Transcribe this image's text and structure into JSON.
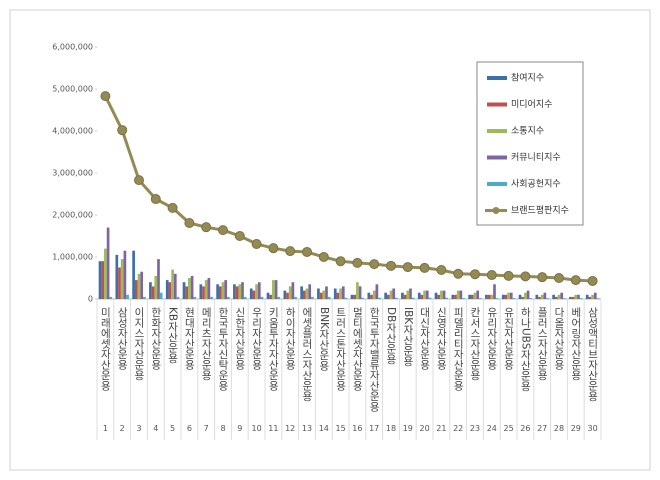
{
  "chart_data": {
    "type": "bar-line",
    "categories": [
      "미래에셋자산운용",
      "삼성자산운용",
      "이지스자산운용",
      "한화자산운용",
      "KB자산운용",
      "현대자산운용",
      "메리츠자산운용",
      "한국투자신탁운용",
      "신한자산운용",
      "우리자산운용",
      "키움투자자산운용",
      "하이자산운용",
      "에셋플러스자산운용",
      "BNK자산운용",
      "트러스톤자산운용",
      "멀티에셋자산운용",
      "한국투자밸류자산운용",
      "DB자산운용",
      "IBK자산운용",
      "대신자산운용",
      "신영자산운용",
      "피델리티자산운용",
      "칸서스자산운용",
      "유리자산운용",
      "유진자산운용",
      "하나UBS자산운용",
      "플러스자산운용",
      "다올자산운용",
      "베어링자산운용",
      "삼성액티브자산운용"
    ],
    "ranks": [
      "1",
      "2",
      "3",
      "4",
      "5",
      "6",
      "7",
      "8",
      "9",
      "10",
      "11",
      "12",
      "13",
      "14",
      "15",
      "16",
      "17",
      "18",
      "19",
      "20",
      "21",
      "22",
      "23",
      "24",
      "25",
      "26",
      "27",
      "28",
      "29",
      "30"
    ],
    "series": [
      {
        "name": "참여지수",
        "color": "#3d6fa8",
        "kind": "bar",
        "values": [
          900000,
          1050000,
          1150000,
          400000,
          450000,
          400000,
          350000,
          350000,
          350000,
          250000,
          150000,
          200000,
          300000,
          250000,
          250000,
          100000,
          150000,
          150000,
          150000,
          150000,
          150000,
          100000,
          100000,
          100000,
          100000,
          100000,
          100000,
          100000,
          50000,
          100000
        ]
      },
      {
        "name": "미디어지수",
        "color": "#c0504d",
        "kind": "bar",
        "values": [
          900000,
          750000,
          450000,
          300000,
          400000,
          300000,
          300000,
          300000,
          300000,
          200000,
          100000,
          150000,
          200000,
          150000,
          150000,
          100000,
          100000,
          100000,
          100000,
          100000,
          100000,
          100000,
          100000,
          100000,
          100000,
          50000,
          50000,
          50000,
          50000,
          50000
        ]
      },
      {
        "name": "소통지수",
        "color": "#9bbb59",
        "kind": "bar",
        "values": [
          1200000,
          950000,
          600000,
          550000,
          700000,
          500000,
          450000,
          400000,
          350000,
          350000,
          450000,
          300000,
          250000,
          200000,
          250000,
          400000,
          200000,
          200000,
          200000,
          200000,
          200000,
          200000,
          150000,
          100000,
          150000,
          150000,
          100000,
          100000,
          100000,
          100000
        ]
      },
      {
        "name": "커뮤니티지수",
        "color": "#8064a2",
        "kind": "bar",
        "values": [
          1700000,
          1150000,
          650000,
          950000,
          600000,
          550000,
          500000,
          450000,
          400000,
          400000,
          450000,
          400000,
          350000,
          300000,
          300000,
          300000,
          350000,
          250000,
          250000,
          200000,
          200000,
          200000,
          200000,
          350000,
          150000,
          200000,
          150000,
          150000,
          100000,
          150000
        ]
      },
      {
        "name": "사회공헌지수",
        "color": "#4bacc6",
        "kind": "bar",
        "values": [
          50000,
          100000,
          50000,
          150000,
          50000,
          50000,
          50000,
          50000,
          50000,
          50000,
          50000,
          50000,
          50000,
          50000,
          30000,
          30000,
          30000,
          30000,
          30000,
          30000,
          30000,
          20000,
          20000,
          20000,
          20000,
          20000,
          20000,
          20000,
          20000,
          20000
        ]
      },
      {
        "name": "브랜드평판지수",
        "color": "#948a54",
        "kind": "line",
        "values": [
          4830000,
          4020000,
          2830000,
          2380000,
          2170000,
          1810000,
          1710000,
          1640000,
          1500000,
          1310000,
          1210000,
          1140000,
          1120000,
          1000000,
          900000,
          860000,
          830000,
          790000,
          760000,
          740000,
          690000,
          600000,
          590000,
          570000,
          550000,
          540000,
          520000,
          500000,
          450000,
          430000
        ]
      }
    ],
    "ylim": [
      0,
      6000000
    ],
    "yticks": [
      {
        "value": 0,
        "label": "0"
      },
      {
        "value": 1000000,
        "label": "1,000,000"
      },
      {
        "value": 2000000,
        "label": "2,000,000"
      },
      {
        "value": 3000000,
        "label": "3,000,000"
      },
      {
        "value": 4000000,
        "label": "4,000,000"
      },
      {
        "value": 5000000,
        "label": "5,000,000"
      },
      {
        "value": 6000000,
        "label": "6,000,000"
      }
    ],
    "legend": "upper right"
  }
}
